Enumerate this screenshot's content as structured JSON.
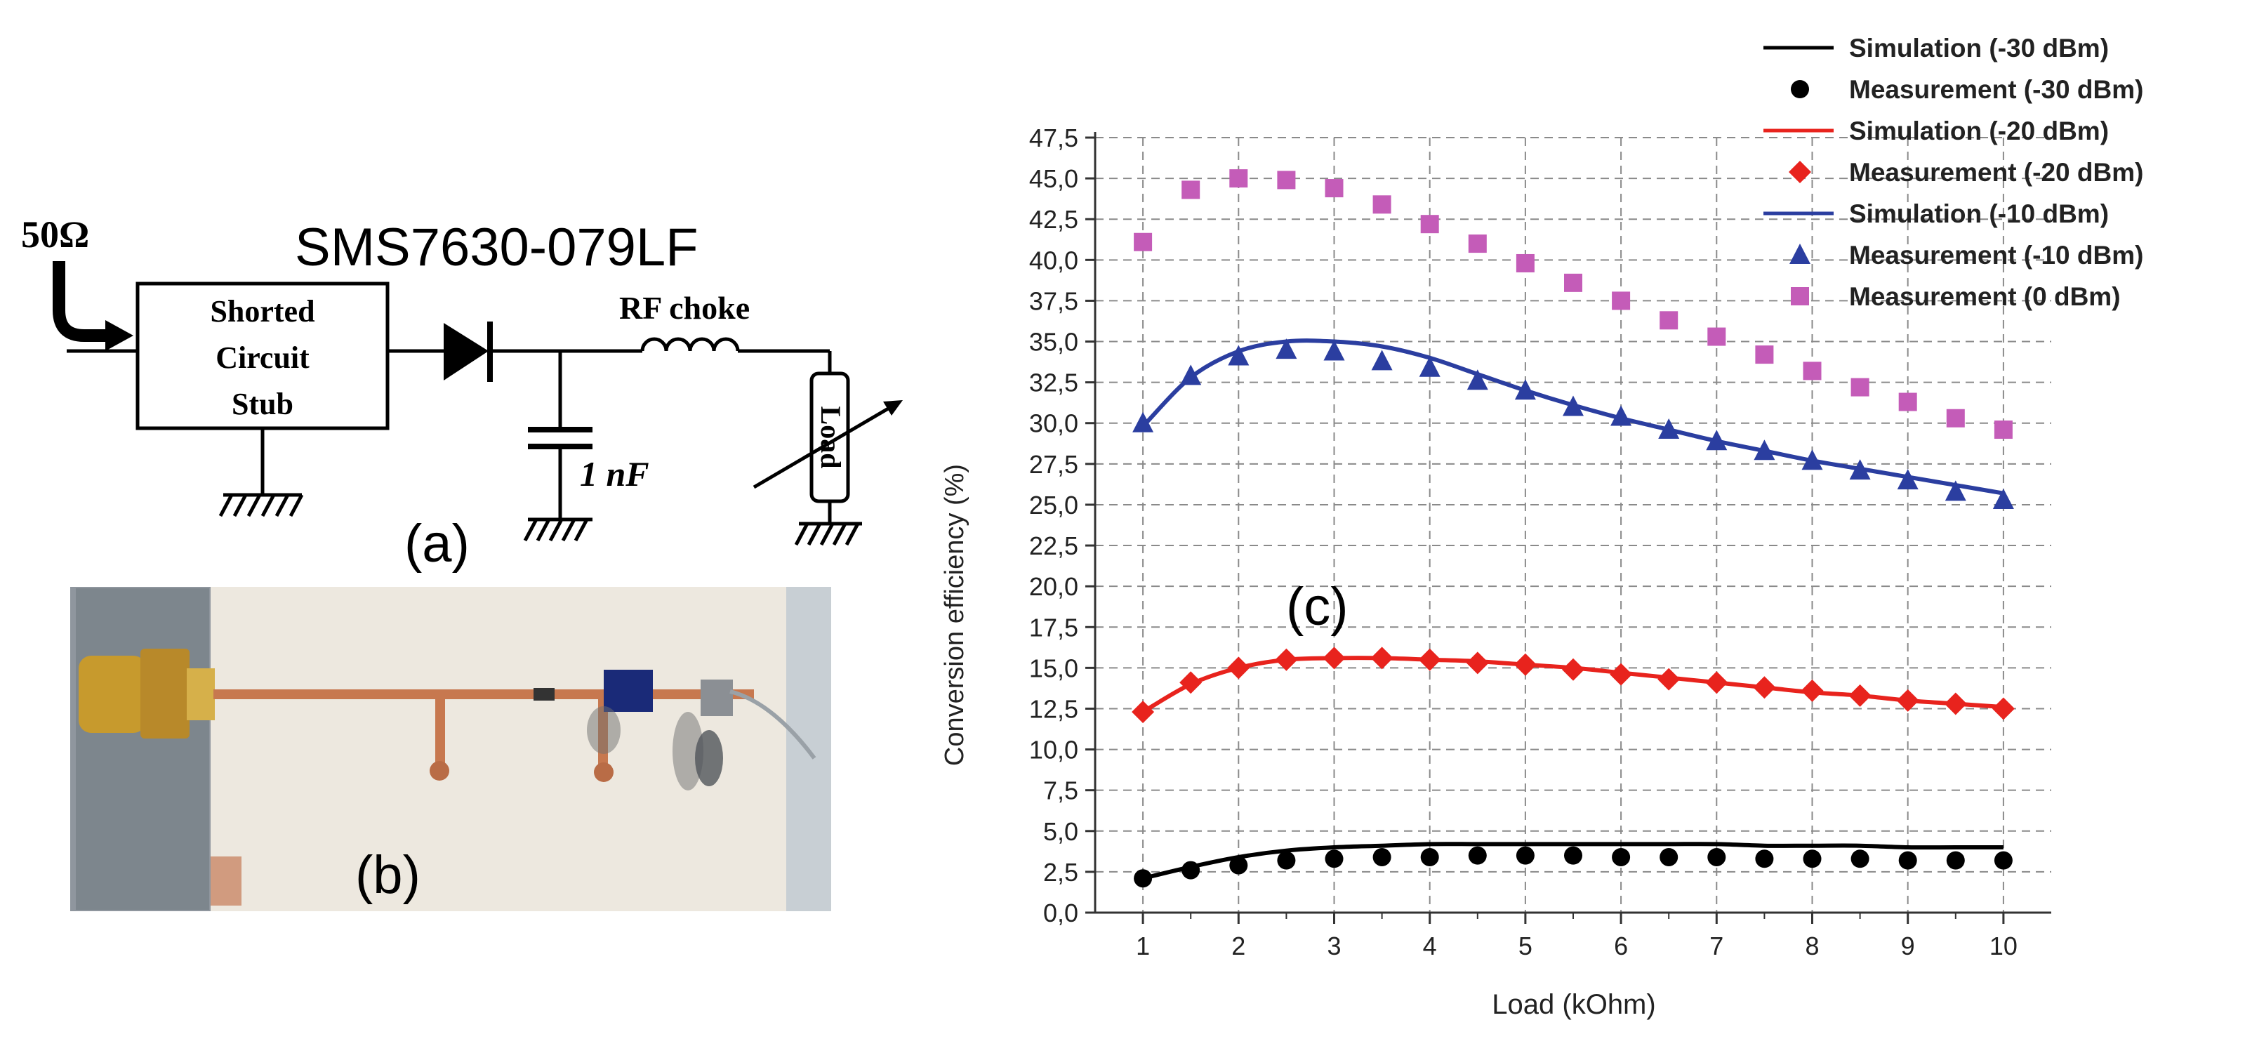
{
  "panels": {
    "a": {
      "label": "(a)",
      "part_number": "SMS7630-079LF",
      "source_impedance": "50Ω",
      "stub_label_lines": [
        "Shorted",
        "Circuit",
        "Stub"
      ],
      "choke_label": "RF choke",
      "capacitor_label": "1 nF",
      "load_label": "Load"
    },
    "b": {
      "label": "(b)"
    },
    "c": {
      "label": "(c)"
    }
  },
  "chart_data": {
    "type": "line",
    "xlabel": "Load (kOhm)",
    "ylabel": "Conversion efficiency (%)",
    "xlim": [
      0.5,
      10.5
    ],
    "ylim": [
      0,
      47.5
    ],
    "xticks": [
      1,
      2,
      3,
      4,
      5,
      6,
      7,
      8,
      9,
      10
    ],
    "xtick_labels": [
      "1",
      "2",
      "3",
      "4",
      "5",
      "6",
      "7",
      "8",
      "9",
      "10"
    ],
    "yticks": [
      0,
      2.5,
      5,
      7.5,
      10,
      12.5,
      15,
      17.5,
      20,
      22.5,
      25,
      27.5,
      30,
      32.5,
      35,
      37.5,
      40,
      42.5,
      45,
      47.5
    ],
    "ytick_labels": [
      "0,0",
      "2,5",
      "5,0",
      "7,5",
      "10,0",
      "12,5",
      "15,0",
      "17,5",
      "20,0",
      "22,5",
      "25,0",
      "27,5",
      "30,0",
      "32,5",
      "35,0",
      "37,5",
      "40,0",
      "42,5",
      "45,0",
      "47,5"
    ],
    "grid": true,
    "legend_position": "top-right",
    "x": [
      1,
      1.5,
      2,
      2.5,
      3,
      3.5,
      4,
      4.5,
      5,
      5.5,
      6,
      6.5,
      7,
      7.5,
      8,
      8.5,
      9,
      9.5,
      10
    ],
    "series": [
      {
        "name": "Simulation (-30 dBm)",
        "kind": "line",
        "color": "#000000",
        "values": [
          2.1,
          2.8,
          3.4,
          3.8,
          4.0,
          4.1,
          4.2,
          4.2,
          4.2,
          4.2,
          4.2,
          4.2,
          4.2,
          4.1,
          4.1,
          4.1,
          4.0,
          4.0,
          4.0
        ]
      },
      {
        "name": "Measurement (-30 dBm)",
        "kind": "marker",
        "marker": "circle",
        "color": "#000000",
        "values": [
          2.1,
          2.6,
          2.9,
          3.2,
          3.3,
          3.4,
          3.4,
          3.5,
          3.5,
          3.5,
          3.4,
          3.4,
          3.4,
          3.3,
          3.3,
          3.3,
          3.2,
          3.2,
          3.2
        ]
      },
      {
        "name": "Simulation (-20 dBm)",
        "kind": "line",
        "color": "#e8231d",
        "values": [
          12.3,
          14.0,
          15.0,
          15.5,
          15.6,
          15.6,
          15.5,
          15.4,
          15.2,
          15.0,
          14.7,
          14.4,
          14.1,
          13.8,
          13.5,
          13.3,
          13.0,
          12.8,
          12.6
        ]
      },
      {
        "name": "Measurement (-20 dBm)",
        "kind": "marker",
        "marker": "diamond",
        "color": "#e8231d",
        "values": [
          12.3,
          14.1,
          15.0,
          15.5,
          15.6,
          15.6,
          15.5,
          15.3,
          15.2,
          14.9,
          14.6,
          14.3,
          14.1,
          13.8,
          13.6,
          13.3,
          13.0,
          12.8,
          12.5
        ]
      },
      {
        "name": "Simulation (-10 dBm)",
        "kind": "line",
        "color": "#2b3ea0",
        "values": [
          29.8,
          32.8,
          34.4,
          35.0,
          35.0,
          34.7,
          34.0,
          33.0,
          32.0,
          31.1,
          30.3,
          29.6,
          28.9,
          28.3,
          27.7,
          27.2,
          26.7,
          26.2,
          25.7
        ]
      },
      {
        "name": "Measurement (-10 dBm)",
        "kind": "marker",
        "marker": "triangle",
        "color": "#2b3ea0",
        "values": [
          30.0,
          32.9,
          34.1,
          34.5,
          34.4,
          33.8,
          33.4,
          32.6,
          32.0,
          31.0,
          30.4,
          29.6,
          28.9,
          28.3,
          27.7,
          27.1,
          26.5,
          25.8,
          25.3
        ]
      },
      {
        "name": "Measurement (0 dBm)",
        "kind": "marker",
        "marker": "square",
        "color": "#c45cb8",
        "values": [
          41.1,
          44.3,
          45.0,
          44.9,
          44.4,
          43.4,
          42.2,
          41.0,
          39.8,
          38.6,
          37.5,
          36.3,
          35.3,
          34.2,
          33.2,
          32.2,
          31.3,
          30.3,
          29.6
        ]
      }
    ]
  }
}
